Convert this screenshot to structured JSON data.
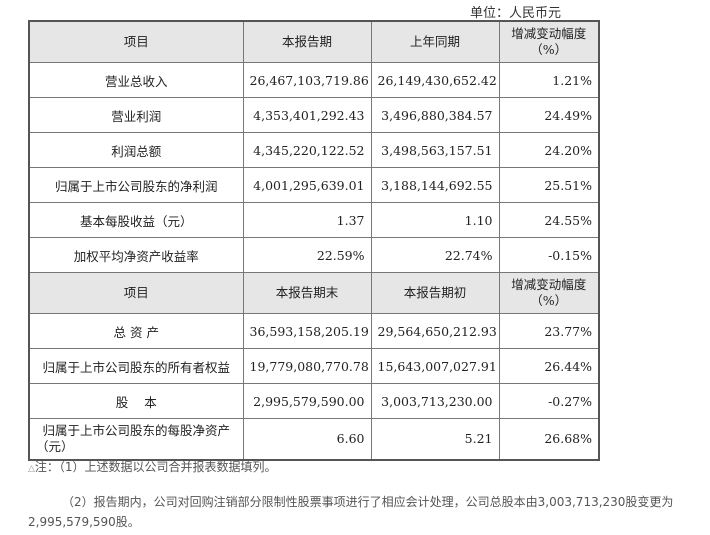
{
  "unit_label": "单位：人民币元",
  "table": {
    "header1": {
      "item": "项目",
      "current": "本报告期",
      "prior": "上年同期",
      "change_line1": "增减变动幅度",
      "change_line2": "（%）"
    },
    "rows1": [
      {
        "label": "营业总收入",
        "current": "26,467,103,719.86",
        "prior": "26,149,430,652.42",
        "change": "1.21%"
      },
      {
        "label": "营业利润",
        "current": "4,353,401,292.43",
        "prior": "3,496,880,384.57",
        "change": "24.49%"
      },
      {
        "label": "利润总额",
        "current": "4,345,220,122.52",
        "prior": "3,498,563,157.51",
        "change": "24.20%"
      },
      {
        "label": "归属于上市公司股东的净利润",
        "current": "4,001,295,639.01",
        "prior": "3,188,144,692.55",
        "change": "25.51%"
      },
      {
        "label": "基本每股收益（元）",
        "current": "1.37",
        "prior": "1.10",
        "change": "24.55%"
      },
      {
        "label": "加权平均净资产收益率",
        "current": "22.59%",
        "prior": "22.74%",
        "change": "-0.15%"
      }
    ],
    "header2": {
      "item": "项目",
      "current": "本报告期末",
      "prior": "本报告期初",
      "change_line1": "增减变动幅度",
      "change_line2": "（%）"
    },
    "rows2": [
      {
        "label": "总 资 产",
        "current": "36,593,158,205.19",
        "prior": "29,564,650,212.93",
        "change": "23.77%"
      },
      {
        "label": "归属于上市公司股东的所有者权益",
        "current": "19,779,080,770.78",
        "prior": "15,643,007,027.91",
        "change": "26.44%"
      },
      {
        "label": "股    本",
        "current": "2,995,579,590.00",
        "prior": "3,003,713,230.00",
        "change": "-0.27%"
      },
      {
        "label_line1": "归属于上市公司股东的每股净资产",
        "label_line2": "（元）",
        "current": "6.60",
        "prior": "5.21",
        "change": "26.68%"
      }
    ]
  },
  "notes": {
    "mark": "△",
    "note1": "注：（1）上述数据以公司合并报表数据填列。",
    "note2": "（2）报告期内，公司对回购注销部分限制性股票事项进行了相应会计处理，公司总股本由3,003,713,230股变更为2,995,579,590股。"
  }
}
